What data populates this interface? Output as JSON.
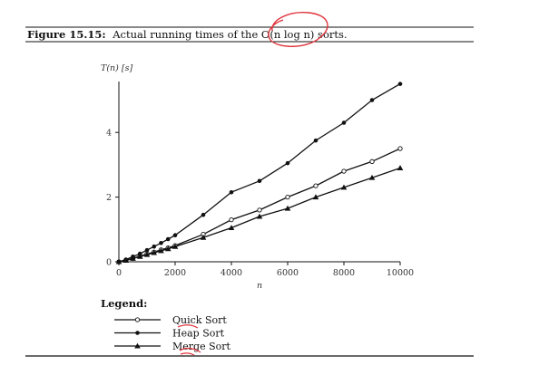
{
  "caption": {
    "label": "Figure 15.15:",
    "text": "Actual running times of the O(n log n) sorts."
  },
  "colors": {
    "ink": "#111111",
    "annotation": "#e0343c"
  },
  "chart_data": {
    "type": "line",
    "ylabel": "T(n) [s]",
    "xlabel": "n",
    "xlim": [
      0,
      10000
    ],
    "ylim": [
      0,
      5.5
    ],
    "xticks": [
      "0",
      "2000",
      "4000",
      "6000",
      "8000",
      "10000"
    ],
    "yticks": [
      "0",
      "2",
      "4"
    ],
    "grid": false,
    "legend_title": "Legend:",
    "legend_position": "bottom-left",
    "series": [
      {
        "name": "Quick Sort",
        "marker": "open-circle",
        "x": [
          0,
          250,
          500,
          750,
          1000,
          1250,
          1500,
          1750,
          2000,
          3000,
          4000,
          5000,
          6000,
          7000,
          8000,
          9000,
          10000
        ],
        "y": [
          0,
          0.05,
          0.11,
          0.17,
          0.24,
          0.3,
          0.37,
          0.43,
          0.5,
          0.85,
          1.3,
          1.6,
          2.0,
          2.35,
          2.8,
          3.1,
          3.5
        ]
      },
      {
        "name": "Heap Sort",
        "marker": "filled-circle",
        "x": [
          0,
          250,
          500,
          750,
          1000,
          1250,
          1500,
          1750,
          2000,
          3000,
          4000,
          5000,
          6000,
          7000,
          8000,
          9000,
          10000
        ],
        "y": [
          0,
          0.07,
          0.16,
          0.25,
          0.36,
          0.47,
          0.58,
          0.7,
          0.82,
          1.45,
          2.15,
          2.5,
          3.05,
          3.75,
          4.3,
          5.0,
          5.5
        ]
      },
      {
        "name": "Merge Sort",
        "marker": "filled-triangle",
        "x": [
          0,
          250,
          500,
          750,
          1000,
          1250,
          1500,
          1750,
          2000,
          3000,
          4000,
          5000,
          6000,
          7000,
          8000,
          9000,
          10000
        ],
        "y": [
          0,
          0.04,
          0.1,
          0.16,
          0.22,
          0.28,
          0.34,
          0.4,
          0.47,
          0.75,
          1.05,
          1.4,
          1.65,
          2.0,
          2.3,
          2.6,
          2.9
        ]
      }
    ]
  }
}
